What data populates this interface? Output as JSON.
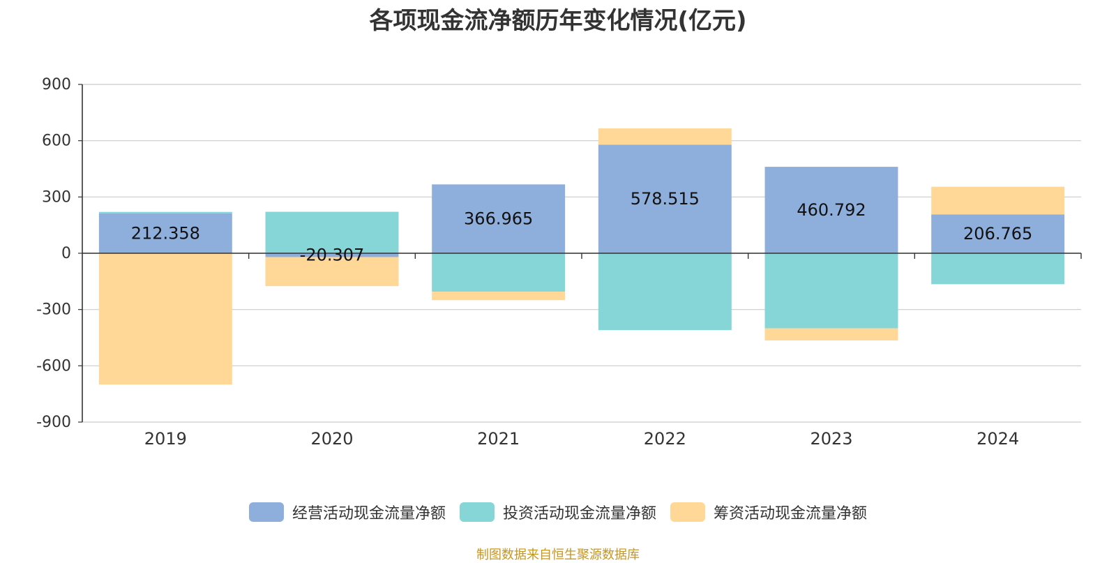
{
  "chart_data": {
    "type": "bar",
    "stacked": true,
    "title": "各项现金流净额历年变化情况(亿元)",
    "categories": [
      "2019",
      "2020",
      "2021",
      "2022",
      "2023",
      "2024"
    ],
    "series": [
      {
        "name": "经营活动现金流量净额",
        "color": "#8eaedc",
        "values": [
          212.358,
          -20.307,
          366.965,
          578.515,
          460.792,
          206.765
        ]
      },
      {
        "name": "投资活动现金流量净额",
        "color": "#86d5d7",
        "values": [
          8,
          221,
          -205,
          -410,
          -400,
          -165
        ]
      },
      {
        "name": "筹资活动现金流量净额",
        "color": "#ffd897",
        "values": [
          -700,
          -155,
          -45,
          87,
          -65,
          148
        ]
      }
    ],
    "data_labels": [
      "212.358",
      "-20.307",
      "366.965",
      "578.515",
      "460.792",
      "206.765"
    ],
    "ylim": [
      -900,
      900
    ],
    "yticks": [
      900,
      600,
      300,
      0,
      -300,
      -600,
      -900
    ],
    "ytick_labels": [
      "900",
      "600",
      "300",
      "0",
      "-300",
      "-600",
      "-900"
    ],
    "grid": true,
    "legend_position": "bottom"
  },
  "source_note": "制图数据来自恒生聚源数据库"
}
